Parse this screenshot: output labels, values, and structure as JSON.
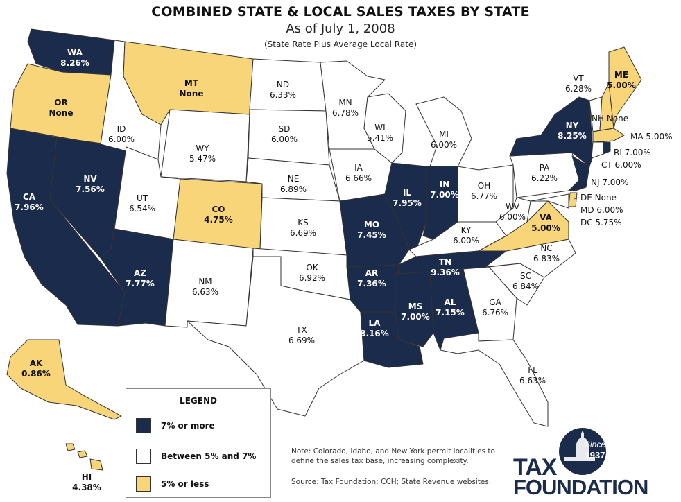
{
  "header": {
    "title": "COMBINED STATE & LOCAL SALES TAXES BY STATE",
    "subtitle": "As of July 1, 2008",
    "note": "(State Rate Plus Average Local Rate)"
  },
  "colors": {
    "high": "#1b2b4b",
    "mid": "#ffffff",
    "low": "#f9d57a",
    "border": "#333333"
  },
  "legend": {
    "title": "LEGEND",
    "items": [
      {
        "label": "7% or more",
        "color": "#1b2b4b"
      },
      {
        "label": "Between 5% and 7%",
        "color": "#ffffff"
      },
      {
        "label": "5% or less",
        "color": "#f9d57a"
      }
    ]
  },
  "states": {
    "WA": {
      "abbr": "WA",
      "rate": "8.26%",
      "category": "high"
    },
    "OR": {
      "abbr": "OR",
      "rate": "None",
      "category": "low"
    },
    "CA": {
      "abbr": "CA",
      "rate": "7.96%",
      "category": "high"
    },
    "NV": {
      "abbr": "NV",
      "rate": "7.56%",
      "category": "high"
    },
    "ID": {
      "abbr": "ID",
      "rate": "6.00%",
      "category": "mid"
    },
    "MT": {
      "abbr": "MT",
      "rate": "None",
      "category": "low"
    },
    "WY": {
      "abbr": "WY",
      "rate": "5.47%",
      "category": "mid"
    },
    "UT": {
      "abbr": "UT",
      "rate": "6.54%",
      "category": "mid"
    },
    "AZ": {
      "abbr": "AZ",
      "rate": "7.77%",
      "category": "high"
    },
    "CO": {
      "abbr": "CO",
      "rate": "4.75%",
      "category": "low"
    },
    "NM": {
      "abbr": "NM",
      "rate": "6.63%",
      "category": "mid"
    },
    "ND": {
      "abbr": "ND",
      "rate": "6.33%",
      "category": "mid"
    },
    "SD": {
      "abbr": "SD",
      "rate": "6.00%",
      "category": "mid"
    },
    "NE": {
      "abbr": "NE",
      "rate": "6.89%",
      "category": "mid"
    },
    "KS": {
      "abbr": "KS",
      "rate": "6.69%",
      "category": "mid"
    },
    "OK": {
      "abbr": "OK",
      "rate": "6.92%",
      "category": "mid"
    },
    "TX": {
      "abbr": "TX",
      "rate": "6.69%",
      "category": "mid"
    },
    "MN": {
      "abbr": "MN",
      "rate": "6.78%",
      "category": "mid"
    },
    "IA": {
      "abbr": "IA",
      "rate": "6.66%",
      "category": "mid"
    },
    "MO": {
      "abbr": "MO",
      "rate": "7.45%",
      "category": "high"
    },
    "AR": {
      "abbr": "AR",
      "rate": "7.36%",
      "category": "high"
    },
    "LA": {
      "abbr": "LA",
      "rate": "8.16%",
      "category": "high"
    },
    "WI": {
      "abbr": "WI",
      "rate": "5.41%",
      "category": "mid"
    },
    "IL": {
      "abbr": "IL",
      "rate": "7.95%",
      "category": "high"
    },
    "MI": {
      "abbr": "MI",
      "rate": "6.00%",
      "category": "mid"
    },
    "IN": {
      "abbr": "IN",
      "rate": "7.00%",
      "category": "high"
    },
    "OH": {
      "abbr": "OH",
      "rate": "6.77%",
      "category": "mid"
    },
    "KY": {
      "abbr": "KY",
      "rate": "6.00%",
      "category": "mid"
    },
    "TN": {
      "abbr": "TN",
      "rate": "9.36%",
      "category": "high"
    },
    "MS": {
      "abbr": "MS",
      "rate": "7.00%",
      "category": "high"
    },
    "AL": {
      "abbr": "AL",
      "rate": "7.15%",
      "category": "high"
    },
    "GA": {
      "abbr": "GA",
      "rate": "6.76%",
      "category": "mid"
    },
    "FL": {
      "abbr": "FL",
      "rate": "6.63%",
      "category": "mid"
    },
    "SC": {
      "abbr": "SC",
      "rate": "6.84%",
      "category": "mid"
    },
    "NC": {
      "abbr": "NC",
      "rate": "6.83%",
      "category": "mid"
    },
    "VA": {
      "abbr": "VA",
      "rate": "5.00%",
      "category": "low"
    },
    "WV": {
      "abbr": "WV",
      "rate": "6.00%",
      "category": "mid"
    },
    "PA": {
      "abbr": "PA",
      "rate": "6.22%",
      "category": "mid"
    },
    "NY": {
      "abbr": "NY",
      "rate": "8.25%",
      "category": "high"
    },
    "VT": {
      "abbr": "VT",
      "rate": "6.28%",
      "category": "mid"
    },
    "ME": {
      "abbr": "ME",
      "rate": "5.00%",
      "category": "low"
    },
    "AK": {
      "abbr": "AK",
      "rate": "0.86%",
      "category": "low"
    },
    "HI": {
      "abbr": "HI",
      "rate": "4.38%",
      "category": "low"
    }
  },
  "side_labels": {
    "NH": "NH None",
    "MA": "MA 5.00%",
    "RI": "RI 7.00%",
    "CT": "CT 6.00%",
    "NJ": "NJ 7.00%",
    "DE": "DE None",
    "MD": "MD 6.00%",
    "DC": "DC 5.75%"
  },
  "footnote": "Note: Colorado, Idaho, and New York permit localities to define the sales tax base, increasing complexity.",
  "source": "Source: Tax Foundation; CCH; State Revenue websites.",
  "logo": {
    "line1": "TAX",
    "line2": "FOUNDATION",
    "seal_top": "Since",
    "seal_bottom": "1937"
  }
}
